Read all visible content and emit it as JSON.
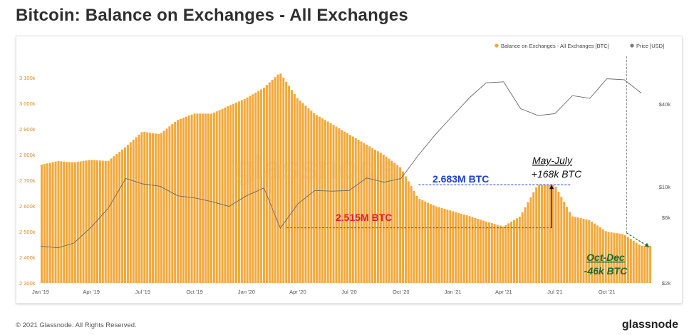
{
  "header": {
    "title": "Bitcoin: Balance on Exchanges - All Exchanges"
  },
  "footer": {
    "copyright": "© 2021 Glassnode. All Rights Reserved.",
    "brand": "glassnode"
  },
  "watermark": "glassnode",
  "colors": {
    "bar": "#F2A93B",
    "price_line": "#666666",
    "blue_annotation": "#1f3fd6",
    "red_annotation": "#e0193f",
    "green_annotation": "#1a6b2d",
    "axis_left": "#D98E2B",
    "axis_right": "#555555"
  },
  "chart_data": {
    "type": "bar",
    "legend": {
      "placement": "top-right",
      "entries": [
        {
          "name": "Balance on Exchanges - All Exchanges [BTC]",
          "color": "#F2A93B"
        },
        {
          "name": "Price [USD]",
          "color": "#777777"
        }
      ]
    },
    "x_ticks": [
      "Jan '19",
      "Apr '19",
      "Jul '19",
      "Oct '19",
      "Jan '20",
      "Apr '20",
      "Jul '20",
      "Oct '20",
      "Jan '21",
      "Apr '21",
      "Jul '21",
      "Oct '21"
    ],
    "y_left": {
      "ticks": [
        "3 100k",
        "3 000k",
        "2 900k",
        "2 800k",
        "2 700k",
        "2 600k",
        "2 500k",
        "2 400k",
        "2 300k"
      ],
      "range": [
        2300000,
        3150000
      ]
    },
    "y_right": {
      "scale": "log",
      "ticks": [
        "$40k",
        "$10k",
        "$6k",
        "$2k"
      ]
    },
    "series": [
      {
        "name": "Balance on Exchanges - All Exchanges [BTC]",
        "unit": "BTC",
        "points": [
          [
            "2019-01-01",
            2760000
          ],
          [
            "2019-02-01",
            2775000
          ],
          [
            "2019-03-01",
            2770000
          ],
          [
            "2019-04-01",
            2780000
          ],
          [
            "2019-05-01",
            2775000
          ],
          [
            "2019-06-01",
            2830000
          ],
          [
            "2019-07-01",
            2890000
          ],
          [
            "2019-08-01",
            2880000
          ],
          [
            "2019-09-01",
            2935000
          ],
          [
            "2019-10-01",
            2960000
          ],
          [
            "2019-11-01",
            2960000
          ],
          [
            "2019-12-01",
            2990000
          ],
          [
            "2020-01-01",
            3020000
          ],
          [
            "2020-02-01",
            3060000
          ],
          [
            "2020-03-01",
            3120000
          ],
          [
            "2020-04-01",
            3020000
          ],
          [
            "2020-05-01",
            2960000
          ],
          [
            "2020-06-01",
            2920000
          ],
          [
            "2020-07-01",
            2880000
          ],
          [
            "2020-08-01",
            2840000
          ],
          [
            "2020-09-01",
            2800000
          ],
          [
            "2020-10-01",
            2750000
          ],
          [
            "2020-11-01",
            2630000
          ],
          [
            "2020-12-01",
            2600000
          ],
          [
            "2021-01-01",
            2580000
          ],
          [
            "2021-02-01",
            2560000
          ],
          [
            "2021-03-01",
            2540000
          ],
          [
            "2021-04-01",
            2520000
          ],
          [
            "2021-05-01",
            2560000
          ],
          [
            "2021-06-01",
            2683000
          ],
          [
            "2021-07-01",
            2683000
          ],
          [
            "2021-08-01",
            2560000
          ],
          [
            "2021-09-01",
            2545000
          ],
          [
            "2021-10-01",
            2500000
          ],
          [
            "2021-11-01",
            2490000
          ],
          [
            "2021-12-01",
            2445000
          ]
        ]
      },
      {
        "name": "Price [USD]",
        "unit": "USD",
        "points": [
          [
            "2019-01-01",
            3700
          ],
          [
            "2019-02-01",
            3600
          ],
          [
            "2019-03-01",
            3900
          ],
          [
            "2019-04-01",
            5100
          ],
          [
            "2019-05-01",
            7000
          ],
          [
            "2019-06-01",
            11500
          ],
          [
            "2019-07-01",
            10500
          ],
          [
            "2019-08-01",
            10100
          ],
          [
            "2019-09-01",
            8600
          ],
          [
            "2019-10-01",
            8300
          ],
          [
            "2019-11-01",
            7800
          ],
          [
            "2019-12-01",
            7200
          ],
          [
            "2020-01-01",
            8600
          ],
          [
            "2020-02-01",
            9800
          ],
          [
            "2020-03-01",
            5000
          ],
          [
            "2020-04-01",
            7500
          ],
          [
            "2020-05-01",
            9400
          ],
          [
            "2020-06-01",
            9300
          ],
          [
            "2020-07-01",
            9400
          ],
          [
            "2020-08-01",
            11600
          ],
          [
            "2020-09-01",
            10800
          ],
          [
            "2020-10-01",
            11500
          ],
          [
            "2020-11-01",
            17000
          ],
          [
            "2020-12-01",
            24000
          ],
          [
            "2021-01-01",
            33000
          ],
          [
            "2021-02-01",
            45000
          ],
          [
            "2021-03-01",
            57000
          ],
          [
            "2021-04-01",
            58000
          ],
          [
            "2021-05-01",
            37000
          ],
          [
            "2021-06-01",
            33000
          ],
          [
            "2021-07-01",
            34000
          ],
          [
            "2021-08-01",
            46000
          ],
          [
            "2021-09-01",
            44000
          ],
          [
            "2021-10-01",
            61000
          ],
          [
            "2021-11-01",
            60000
          ],
          [
            "2021-12-01",
            48000
          ]
        ]
      }
    ],
    "annotations": {
      "level_high": {
        "text": "2.683M BTC",
        "value": 2683000,
        "color": "#1f3fd6"
      },
      "level_low": {
        "text": "2.515M BTC",
        "value": 2515000,
        "color": "#e0193f"
      },
      "may_july": {
        "line1": "May-July",
        "line2": "+168k BTC"
      },
      "oct_dec": {
        "line1": "Oct-Dec",
        "line2": "-46k BTC"
      }
    }
  }
}
